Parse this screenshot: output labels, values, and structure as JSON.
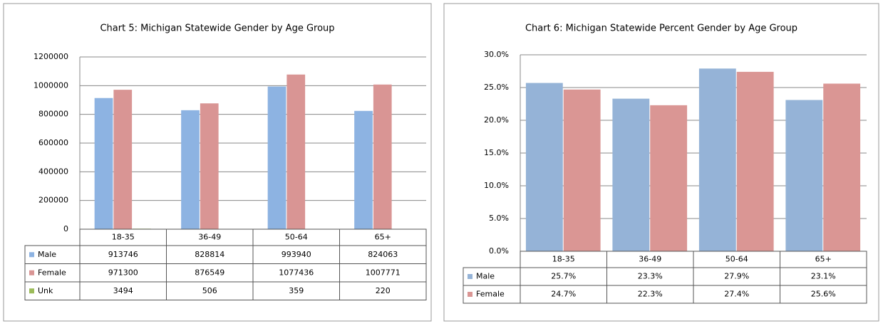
{
  "chart_data": [
    {
      "type": "bar",
      "title": "Chart 5: Michigan Statewide Gender by Age Group",
      "categories": [
        "18-35",
        "36-49",
        "50-64",
        "65+"
      ],
      "series": [
        {
          "name": "Male",
          "color": "#8db3e2",
          "values": [
            913746,
            828814,
            993940,
            824063
          ]
        },
        {
          "name": "Female",
          "color": "#d99594",
          "values": [
            971300,
            876549,
            1077436,
            1007771
          ]
        },
        {
          "name": "Unk",
          "color": "#9bbb59",
          "values": [
            3494,
            506,
            359,
            220
          ]
        }
      ],
      "ylim": [
        0,
        1200000
      ],
      "yticks": [
        0,
        200000,
        400000,
        600000,
        800000,
        1000000,
        1200000
      ],
      "grid": true
    },
    {
      "type": "bar",
      "title": "Chart 6: Michigan Statewide Percent  Gender by Age Group",
      "categories": [
        "18-35",
        "36-49",
        "50-64",
        "65+"
      ],
      "series": [
        {
          "name": "Male",
          "color": "#95b3d7",
          "values": [
            25.7,
            23.3,
            27.9,
            23.1
          ],
          "value_labels": [
            "25.7%",
            "23.3%",
            "27.9%",
            "23.1%"
          ]
        },
        {
          "name": "Female",
          "color": "#da9694",
          "values": [
            24.7,
            22.3,
            27.4,
            25.6
          ],
          "value_labels": [
            "24.7%",
            "22.3%",
            "27.4%",
            "25.6%"
          ]
        }
      ],
      "ylim": [
        0,
        30
      ],
      "yticks": [
        {
          "value": 0,
          "label": "0.0%"
        },
        {
          "value": 5,
          "label": "5.0%"
        },
        {
          "value": 10,
          "label": "10.0%"
        },
        {
          "value": 15,
          "label": "15.0%"
        },
        {
          "value": 20,
          "label": "20.0%"
        },
        {
          "value": 25,
          "label": "25.0%"
        },
        {
          "value": 30,
          "label": "30.0%"
        }
      ],
      "grid": true
    }
  ]
}
